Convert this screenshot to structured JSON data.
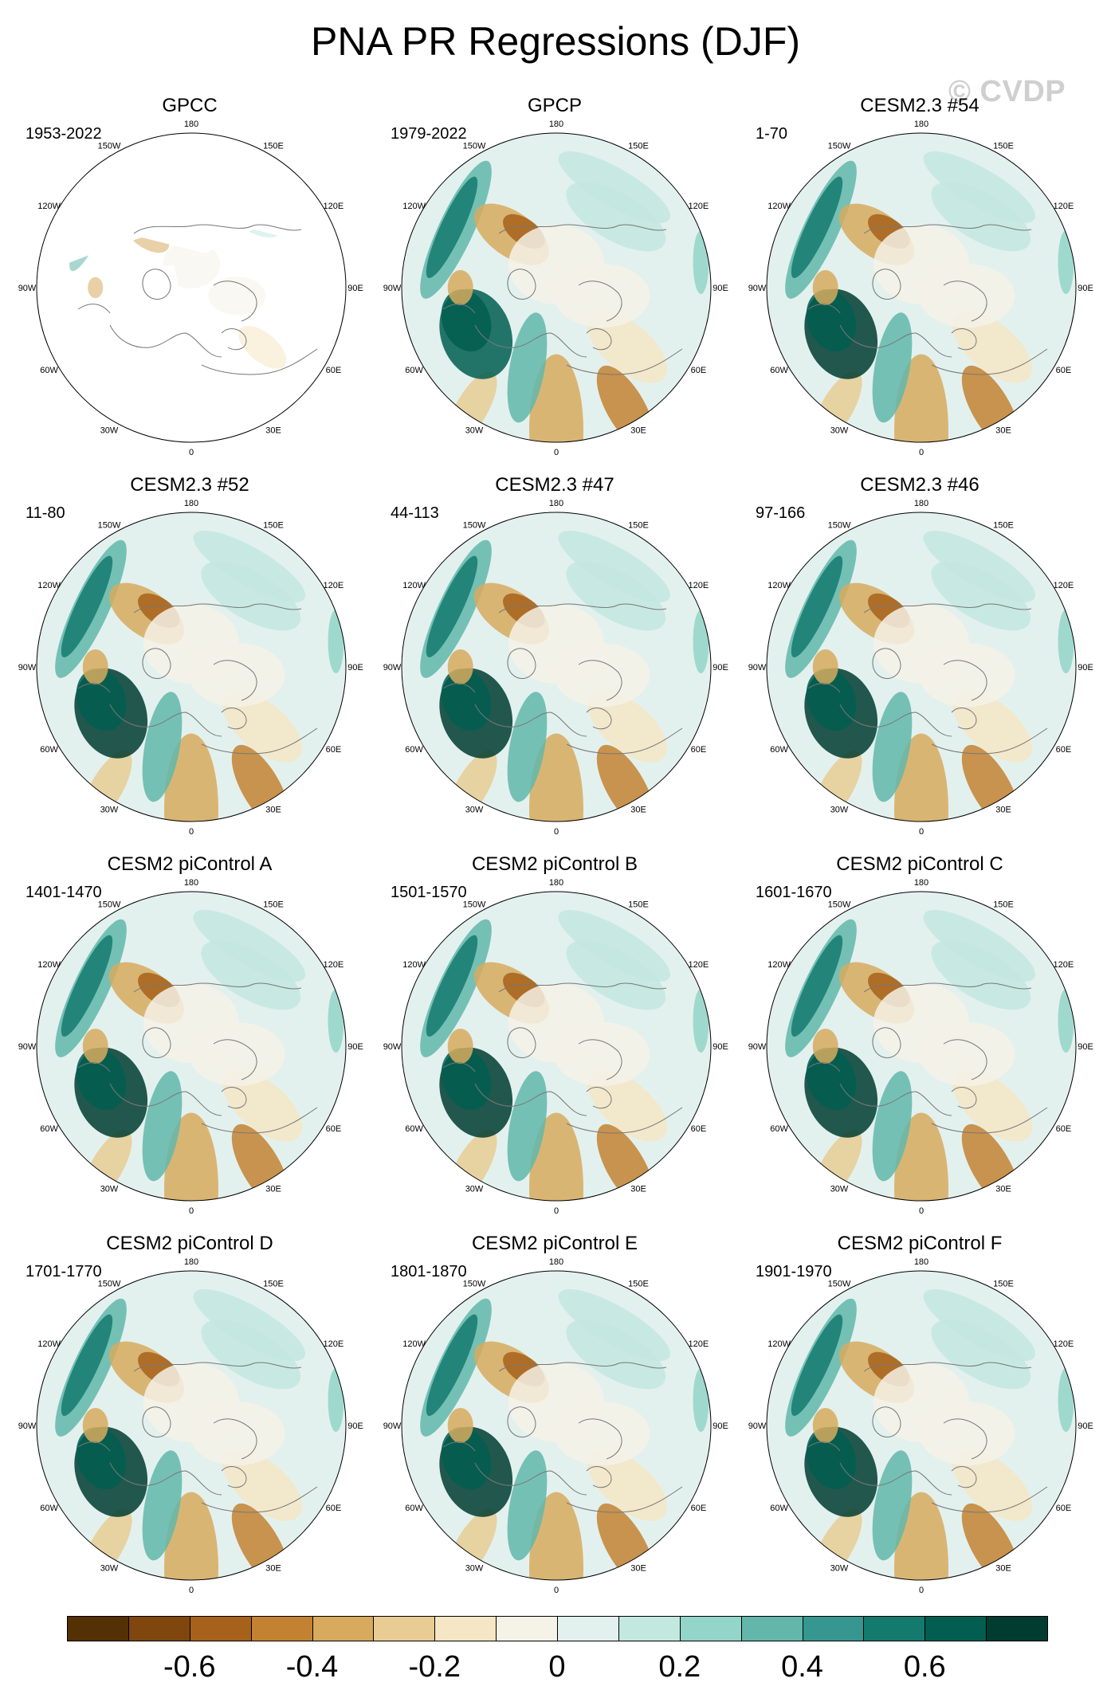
{
  "title": "PNA PR Regressions (DJF)",
  "watermark": "© CVDP",
  "longitude_labels": [
    "180",
    "150E",
    "120E",
    "90E",
    "60E",
    "30E",
    "0",
    "30W",
    "60W",
    "90W",
    "120W",
    "150W"
  ],
  "panels": [
    {
      "title": "GPCC",
      "years": "1953-2022",
      "variant": "gpcc"
    },
    {
      "title": "GPCP",
      "years": "1979-2022",
      "variant": "obs"
    },
    {
      "title": "CESM2.3 #54",
      "years": "1-70",
      "variant": "model"
    },
    {
      "title": "CESM2.3 #52",
      "years": "11-80",
      "variant": "model"
    },
    {
      "title": "CESM2.3 #47",
      "years": "44-113",
      "variant": "model"
    },
    {
      "title": "CESM2.3 #46",
      "years": "97-166",
      "variant": "model"
    },
    {
      "title": "CESM2 piControl A",
      "years": "1401-1470",
      "variant": "model"
    },
    {
      "title": "CESM2 piControl B",
      "years": "1501-1570",
      "variant": "model"
    },
    {
      "title": "CESM2 piControl C",
      "years": "1601-1670",
      "variant": "model"
    },
    {
      "title": "CESM2 piControl D",
      "years": "1701-1770",
      "variant": "model"
    },
    {
      "title": "CESM2 piControl E",
      "years": "1801-1870",
      "variant": "model"
    },
    {
      "title": "CESM2 piControl F",
      "years": "1901-1970",
      "variant": "model"
    }
  ],
  "colorbar": {
    "colors": [
      "#543005",
      "#7f470d",
      "#a6611a",
      "#c38231",
      "#d7aa5e",
      "#e8cc93",
      "#f5e6c5",
      "#f5f2e8",
      "#e3f1ee",
      "#c3e8e0",
      "#93d5c8",
      "#62b7aa",
      "#35978f",
      "#157a6e",
      "#015e50",
      "#003c30"
    ],
    "labels": [
      "-0.6",
      "-0.4",
      "-0.2",
      "0",
      "0.2",
      "0.4",
      "0.6"
    ]
  }
}
